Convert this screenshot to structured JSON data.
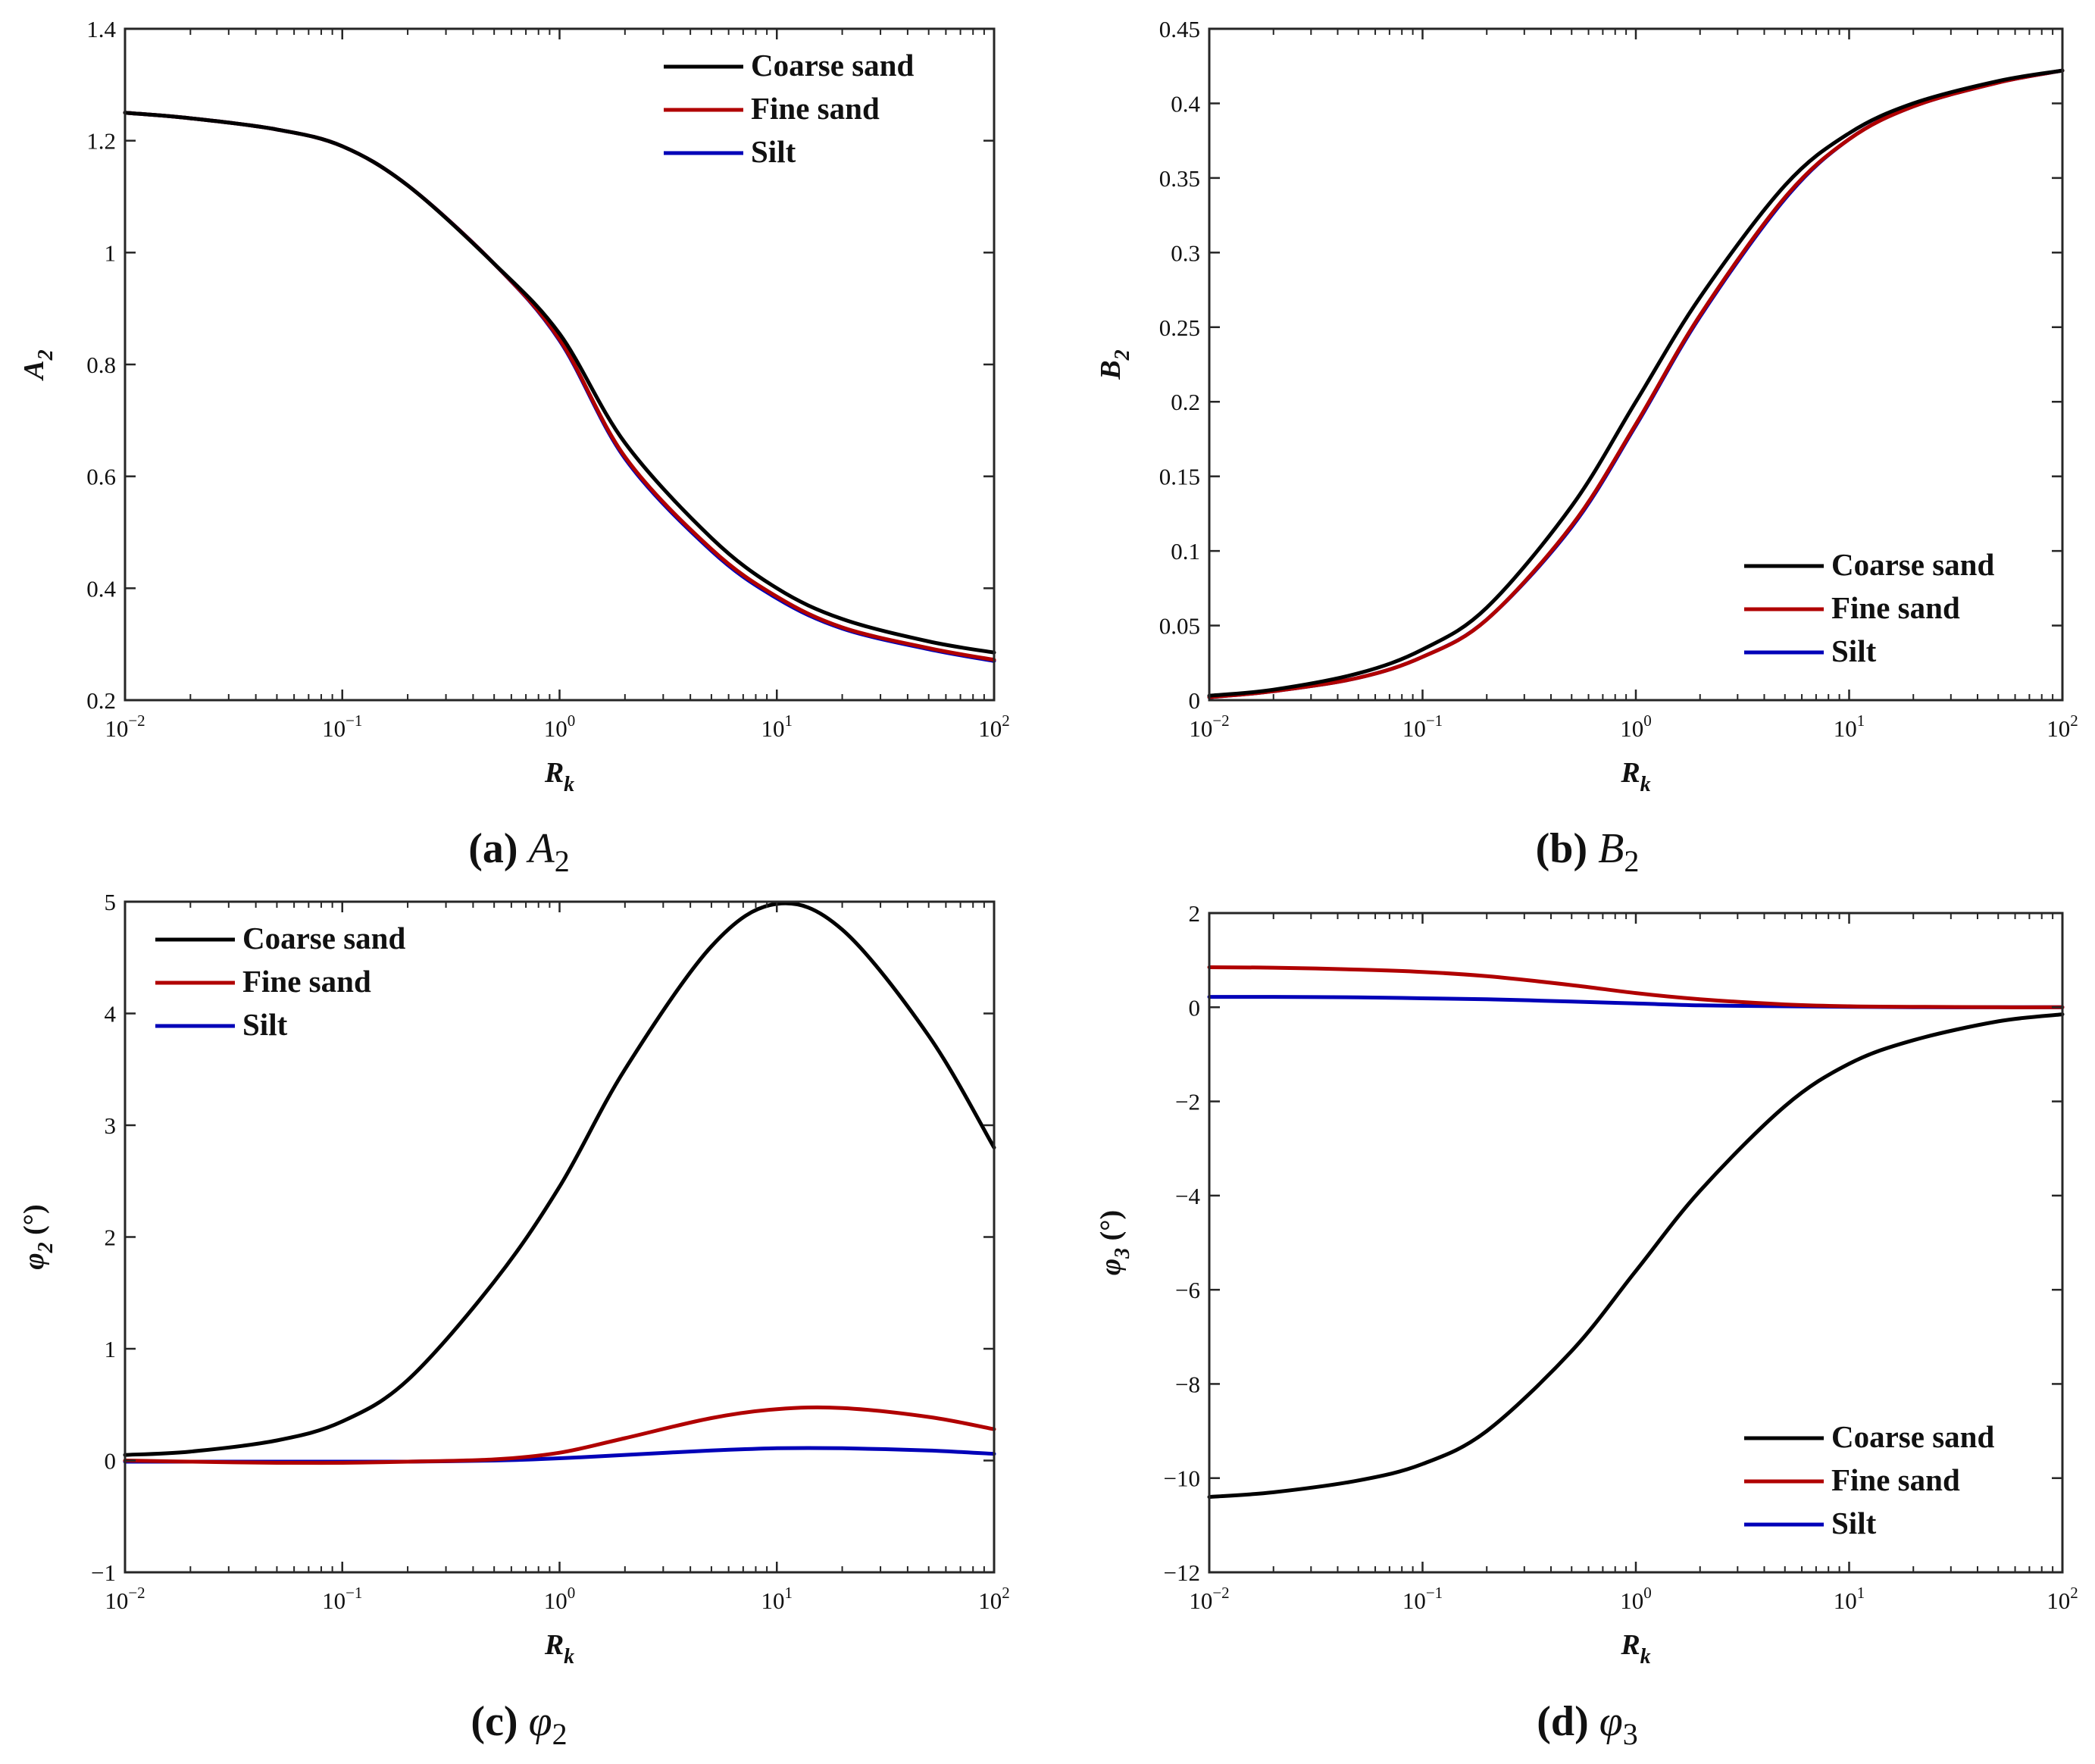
{
  "figure": {
    "colors": {
      "coarse": "#000000",
      "fine": "#b00000",
      "silt": "#0000b8",
      "axis": "#262626"
    },
    "panels": [
      {
        "id": "a",
        "caption": {
          "label": "(a)",
          "symbol": "A",
          "subscript": "2"
        },
        "chart_data": {
          "type": "line",
          "title": "",
          "xlabel": {
            "base": "R",
            "sub": "k"
          },
          "ylabel": {
            "base": "A",
            "sub": "2",
            "suffix": ""
          },
          "xscale": "log",
          "xlim": [
            0.01,
            100
          ],
          "ylim": [
            0.2,
            1.4
          ],
          "x_ticks": [
            {
              "base": "10",
              "exp": "−2",
              "v": -2
            },
            {
              "base": "10",
              "exp": "−1",
              "v": -1
            },
            {
              "base": "10",
              "exp": "0",
              "v": 0
            },
            {
              "base": "10",
              "exp": "1",
              "v": 1
            },
            {
              "base": "10",
              "exp": "2",
              "v": 2
            }
          ],
          "y_ticks": [
            {
              "label": "0.2",
              "v": 0.2
            },
            {
              "label": "0.4",
              "v": 0.4
            },
            {
              "label": "0.6",
              "v": 0.6
            },
            {
              "label": "0.8",
              "v": 0.8
            },
            {
              "label": "1",
              "v": 1.0
            },
            {
              "label": "1.2",
              "v": 1.2
            },
            {
              "label": "1.4",
              "v": 1.4
            }
          ],
          "legend": {
            "placement": "top-right"
          },
          "x": [
            0.01,
            0.02,
            0.05,
            0.1,
            0.2,
            0.5,
            1,
            2,
            5,
            10,
            20,
            50,
            100
          ],
          "series": [
            {
              "name": "Coarse sand",
              "color_key": "coarse",
              "values": [
                1.25,
                1.24,
                1.22,
                1.19,
                1.12,
                0.98,
                0.855,
                0.66,
                0.49,
                0.4,
                0.345,
                0.305,
                0.285
              ]
            },
            {
              "name": "Fine sand",
              "color_key": "fine",
              "values": [
                1.25,
                1.24,
                1.22,
                1.19,
                1.12,
                0.98,
                0.845,
                0.635,
                0.47,
                0.385,
                0.33,
                0.293,
                0.272
              ]
            },
            {
              "name": "Silt",
              "color_key": "silt",
              "values": [
                1.25,
                1.24,
                1.22,
                1.19,
                1.12,
                0.98,
                0.843,
                0.632,
                0.467,
                0.382,
                0.328,
                0.291,
                0.27
              ]
            }
          ]
        }
      },
      {
        "id": "b",
        "caption": {
          "label": "(b)",
          "symbol": "B",
          "subscript": "2"
        },
        "chart_data": {
          "type": "line",
          "title": "",
          "xlabel": {
            "base": "R",
            "sub": "k"
          },
          "ylabel": {
            "base": "B",
            "sub": "2",
            "suffix": ""
          },
          "xscale": "log",
          "xlim": [
            0.01,
            100
          ],
          "ylim": [
            0,
            0.45
          ],
          "x_ticks": [
            {
              "base": "10",
              "exp": "−2",
              "v": -2
            },
            {
              "base": "10",
              "exp": "−1",
              "v": -1
            },
            {
              "base": "10",
              "exp": "0",
              "v": 0
            },
            {
              "base": "10",
              "exp": "1",
              "v": 1
            },
            {
              "base": "10",
              "exp": "2",
              "v": 2
            }
          ],
          "y_ticks": [
            {
              "label": "0",
              "v": 0
            },
            {
              "label": "0.05",
              "v": 0.05
            },
            {
              "label": "0.1",
              "v": 0.1
            },
            {
              "label": "0.15",
              "v": 0.15
            },
            {
              "label": "0.2",
              "v": 0.2
            },
            {
              "label": "0.25",
              "v": 0.25
            },
            {
              "label": "0.3",
              "v": 0.3
            },
            {
              "label": "0.35",
              "v": 0.35
            },
            {
              "label": "0.4",
              "v": 0.4
            },
            {
              "label": "0.45",
              "v": 0.45
            }
          ],
          "legend": {
            "placement": "bottom-right"
          },
          "x": [
            0.01,
            0.02,
            0.05,
            0.1,
            0.2,
            0.5,
            1,
            2,
            5,
            10,
            20,
            50,
            100
          ],
          "series": [
            {
              "name": "Coarse sand",
              "color_key": "coarse",
              "values": [
                0.003,
                0.007,
                0.018,
                0.034,
                0.062,
                0.13,
                0.2,
                0.27,
                0.345,
                0.38,
                0.4,
                0.415,
                0.422
              ]
            },
            {
              "name": "Fine sand",
              "color_key": "fine",
              "values": [
                0.002,
                0.006,
                0.015,
                0.029,
                0.054,
                0.117,
                0.185,
                0.258,
                0.337,
                0.376,
                0.398,
                0.414,
                0.422
              ]
            },
            {
              "name": "Silt",
              "color_key": "silt",
              "values": [
                0.002,
                0.006,
                0.015,
                0.029,
                0.054,
                0.116,
                0.184,
                0.257,
                0.336,
                0.376,
                0.398,
                0.414,
                0.422
              ]
            }
          ]
        }
      },
      {
        "id": "c",
        "caption": {
          "label": "(c)",
          "symbol": "φ",
          "subscript": "2"
        },
        "chart_data": {
          "type": "line",
          "title": "",
          "xlabel": {
            "base": "R",
            "sub": "k"
          },
          "ylabel": {
            "base": "φ",
            "sub": "2",
            "suffix": " (°)"
          },
          "xscale": "log",
          "xlim": [
            0.01,
            100
          ],
          "ylim": [
            -1,
            5
          ],
          "x_ticks": [
            {
              "base": "10",
              "exp": "−2",
              "v": -2
            },
            {
              "base": "10",
              "exp": "−1",
              "v": -1
            },
            {
              "base": "10",
              "exp": "0",
              "v": 0
            },
            {
              "base": "10",
              "exp": "1",
              "v": 1
            },
            {
              "base": "10",
              "exp": "2",
              "v": 2
            }
          ],
          "y_ticks": [
            {
              "label": "−1",
              "v": -1
            },
            {
              "label": "0",
              "v": 0
            },
            {
              "label": "1",
              "v": 1
            },
            {
              "label": "2",
              "v": 2
            },
            {
              "label": "3",
              "v": 3
            },
            {
              "label": "4",
              "v": 4
            },
            {
              "label": "5",
              "v": 5
            }
          ],
          "legend": {
            "placement": "top-left"
          },
          "x": [
            0.01,
            0.02,
            0.05,
            0.1,
            0.2,
            0.5,
            1,
            2,
            5,
            10,
            20,
            50,
            100
          ],
          "series": [
            {
              "name": "Coarse sand",
              "color_key": "coarse",
              "values": [
                0.05,
                0.08,
                0.18,
                0.35,
                0.72,
                1.6,
                2.45,
                3.5,
                4.6,
                4.98,
                4.75,
                3.8,
                2.8
              ]
            },
            {
              "name": "Fine sand",
              "color_key": "fine",
              "values": [
                0.0,
                -0.01,
                -0.02,
                -0.02,
                -0.01,
                0.01,
                0.07,
                0.2,
                0.38,
                0.46,
                0.47,
                0.39,
                0.28
              ]
            },
            {
              "name": "Silt",
              "color_key": "silt",
              "values": [
                -0.01,
                -0.01,
                -0.01,
                -0.01,
                -0.01,
                0.0,
                0.02,
                0.05,
                0.09,
                0.11,
                0.11,
                0.09,
                0.06
              ]
            }
          ]
        }
      },
      {
        "id": "d",
        "caption": {
          "label": "(d)",
          "symbol": "φ",
          "subscript": "3"
        },
        "chart_data": {
          "type": "line",
          "title": "",
          "xlabel": {
            "base": "R",
            "sub": "k"
          },
          "ylabel": {
            "base": "φ",
            "sub": "3",
            "suffix": " (°)"
          },
          "xscale": "log",
          "xlim": [
            0.01,
            100
          ],
          "ylim": [
            -12,
            2
          ],
          "x_ticks": [
            {
              "base": "10",
              "exp": "−2",
              "v": -2
            },
            {
              "base": "10",
              "exp": "−1",
              "v": -1
            },
            {
              "base": "10",
              "exp": "0",
              "v": 0
            },
            {
              "base": "10",
              "exp": "1",
              "v": 1
            },
            {
              "base": "10",
              "exp": "2",
              "v": 2
            }
          ],
          "y_ticks": [
            {
              "label": "−12",
              "v": -12
            },
            {
              "label": "−10",
              "v": -10
            },
            {
              "label": "−8",
              "v": -8
            },
            {
              "label": "−6",
              "v": -6
            },
            {
              "label": "−4",
              "v": -4
            },
            {
              "label": "−2",
              "v": -2
            },
            {
              "label": "0",
              "v": 0
            },
            {
              "label": "2",
              "v": 2
            }
          ],
          "legend": {
            "placement": "bottom-right"
          },
          "x": [
            0.01,
            0.02,
            0.05,
            0.1,
            0.2,
            0.5,
            1,
            2,
            5,
            10,
            20,
            50,
            100
          ],
          "series": [
            {
              "name": "Coarse sand",
              "color_key": "coarse",
              "values": [
                -10.4,
                -10.3,
                -10.05,
                -9.7,
                -9.0,
                -7.3,
                -5.6,
                -3.9,
                -2.1,
                -1.2,
                -0.7,
                -0.3,
                -0.15
              ]
            },
            {
              "name": "Fine sand",
              "color_key": "fine",
              "values": [
                0.85,
                0.84,
                0.8,
                0.75,
                0.66,
                0.47,
                0.3,
                0.17,
                0.06,
                0.02,
                0.01,
                0.0,
                0.0
              ]
            },
            {
              "name": "Silt",
              "color_key": "silt",
              "values": [
                0.22,
                0.22,
                0.21,
                0.19,
                0.17,
                0.12,
                0.08,
                0.04,
                0.02,
                0.01,
                0.0,
                0.0,
                0.0
              ]
            }
          ]
        }
      }
    ]
  }
}
